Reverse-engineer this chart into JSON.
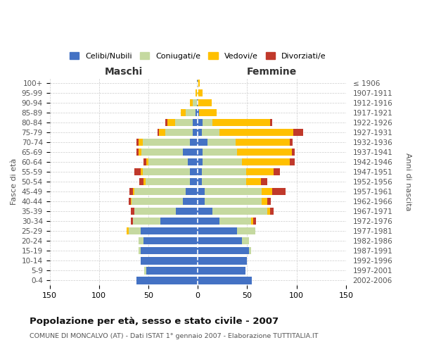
{
  "age_groups": [
    "100+",
    "95-99",
    "90-94",
    "85-89",
    "80-84",
    "75-79",
    "70-74",
    "65-69",
    "60-64",
    "55-59",
    "50-54",
    "45-49",
    "40-44",
    "35-39",
    "30-34",
    "25-29",
    "20-24",
    "15-19",
    "10-14",
    "5-9",
    "0-4"
  ],
  "birth_years": [
    "≤ 1906",
    "1907-1911",
    "1912-1916",
    "1917-1921",
    "1922-1926",
    "1927-1931",
    "1932-1936",
    "1937-1941",
    "1942-1946",
    "1947-1951",
    "1952-1956",
    "1957-1961",
    "1962-1966",
    "1967-1971",
    "1972-1976",
    "1977-1981",
    "1982-1986",
    "1987-1991",
    "1992-1996",
    "1997-2001",
    "2002-2006"
  ],
  "male": {
    "celibi": [
      1,
      0,
      1,
      2,
      5,
      5,
      8,
      15,
      10,
      8,
      8,
      12,
      15,
      22,
      38,
      58,
      55,
      58,
      58,
      52,
      62
    ],
    "coniugati": [
      0,
      1,
      4,
      10,
      18,
      28,
      48,
      42,
      40,
      48,
      45,
      52,
      52,
      42,
      28,
      12,
      5,
      2,
      0,
      2,
      0
    ],
    "vedovi": [
      0,
      1,
      3,
      5,
      8,
      6,
      4,
      3,
      2,
      2,
      2,
      2,
      1,
      0,
      0,
      2,
      0,
      0,
      0,
      0,
      0
    ],
    "divorziati": [
      0,
      0,
      0,
      0,
      2,
      2,
      2,
      2,
      3,
      6,
      4,
      3,
      2,
      4,
      2,
      0,
      0,
      0,
      0,
      0,
      0
    ]
  },
  "female": {
    "nubili": [
      0,
      0,
      0,
      1,
      5,
      4,
      10,
      5,
      5,
      4,
      4,
      7,
      7,
      15,
      22,
      40,
      45,
      52,
      50,
      48,
      55
    ],
    "coniugate": [
      0,
      0,
      0,
      0,
      10,
      18,
      28,
      35,
      40,
      45,
      45,
      58,
      58,
      55,
      32,
      18,
      7,
      2,
      0,
      0,
      0
    ],
    "vedove": [
      2,
      5,
      14,
      18,
      58,
      75,
      55,
      55,
      48,
      28,
      15,
      10,
      5,
      3,
      2,
      0,
      0,
      0,
      0,
      0,
      0
    ],
    "divorziate": [
      0,
      0,
      0,
      0,
      2,
      10,
      3,
      3,
      5,
      6,
      6,
      14,
      4,
      4,
      3,
      0,
      0,
      0,
      0,
      0,
      0
    ]
  },
  "colors": {
    "celibi": "#4472C4",
    "coniugati": "#c5d9a0",
    "vedovi": "#ffc000",
    "divorziati": "#c0392b"
  },
  "xlim": 150,
  "title": "Popolazione per età, sesso e stato civile - 2007",
  "subtitle": "COMUNE DI MONCALVO (AT) - Dati ISTAT 1° gennaio 2007 - Elaborazione TUTTITALIA.IT",
  "ylabel": "Fasce di età",
  "ylabel2": "Anni di nascita",
  "xlabel_left": "Maschi",
  "xlabel_right": "Femmine",
  "legend_labels": [
    "Celibi/Nubili",
    "Coniugati/e",
    "Vedovi/e",
    "Divorziati/e"
  ],
  "background_color": "#ffffff",
  "grid_color": "#cccccc"
}
